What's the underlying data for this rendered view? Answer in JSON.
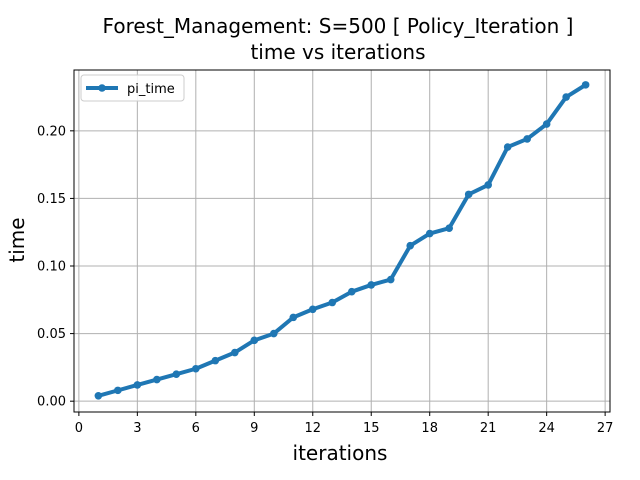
{
  "chart_data": {
    "type": "line",
    "title": "Forest_Management: S=500 [ Policy_Iteration ]",
    "subtitle": "time vs iterations",
    "xlabel": "iterations",
    "ylabel": "time",
    "xlim": [
      -0.25,
      27.25
    ],
    "ylim": [
      -0.008,
      0.245
    ],
    "xticks": [
      0,
      3,
      6,
      9,
      12,
      15,
      18,
      21,
      24,
      27
    ],
    "xtick_labels": [
      "0",
      "3",
      "6",
      "9",
      "12",
      "15",
      "18",
      "21",
      "24",
      "27"
    ],
    "yticks": [
      0.0,
      0.05,
      0.1,
      0.15,
      0.2
    ],
    "ytick_labels": [
      "0.00",
      "0.05",
      "0.10",
      "0.15",
      "0.20"
    ],
    "grid": true,
    "legend_position": "top-left",
    "series": [
      {
        "name": "pi_time",
        "color": "#1f77b4",
        "marker": "circle",
        "x": [
          1,
          2,
          3,
          4,
          5,
          6,
          7,
          8,
          9,
          10,
          11,
          12,
          13,
          14,
          15,
          16,
          17,
          18,
          19,
          20,
          21,
          22,
          23,
          24,
          25,
          26
        ],
        "y": [
          0.004,
          0.008,
          0.012,
          0.016,
          0.02,
          0.024,
          0.03,
          0.036,
          0.045,
          0.05,
          0.062,
          0.068,
          0.073,
          0.081,
          0.086,
          0.09,
          0.115,
          0.124,
          0.128,
          0.153,
          0.16,
          0.188,
          0.194,
          0.205,
          0.225,
          0.234
        ]
      }
    ]
  }
}
